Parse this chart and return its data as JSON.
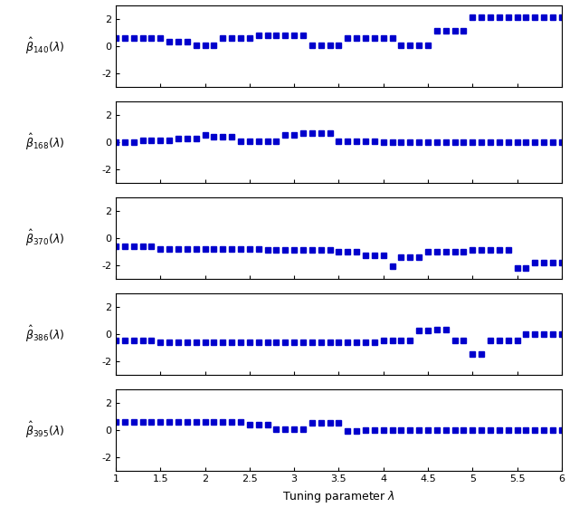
{
  "subplot_labels": [
    "$\\hat{\\beta}_{140}(\\lambda)$",
    "$\\hat{\\beta}_{168}(\\lambda)$",
    "$\\hat{\\beta}_{370}(\\lambda)$",
    "$\\hat{\\beta}_{386}(\\lambda)$",
    "$\\hat{\\beta}_{395}(\\lambda)$"
  ],
  "xlabel": "Tuning parameter $\\lambda$",
  "xlim": [
    1,
    6
  ],
  "ylim": [
    -3,
    3
  ],
  "yticks": [
    -2,
    0,
    2
  ],
  "xticks": [
    1.0,
    1.5,
    2.0,
    2.5,
    3.0,
    3.5,
    4.0,
    4.5,
    5.0,
    5.5,
    6.0
  ],
  "xticklabels": [
    "1",
    "1.5",
    "2",
    "2.5",
    "3",
    "3.5",
    "4",
    "4.5",
    "5",
    "5.5",
    "6"
  ],
  "dot_color": "#0000CC",
  "dot_size": 5,
  "background_color": "#ffffff",
  "n_points": 51
}
